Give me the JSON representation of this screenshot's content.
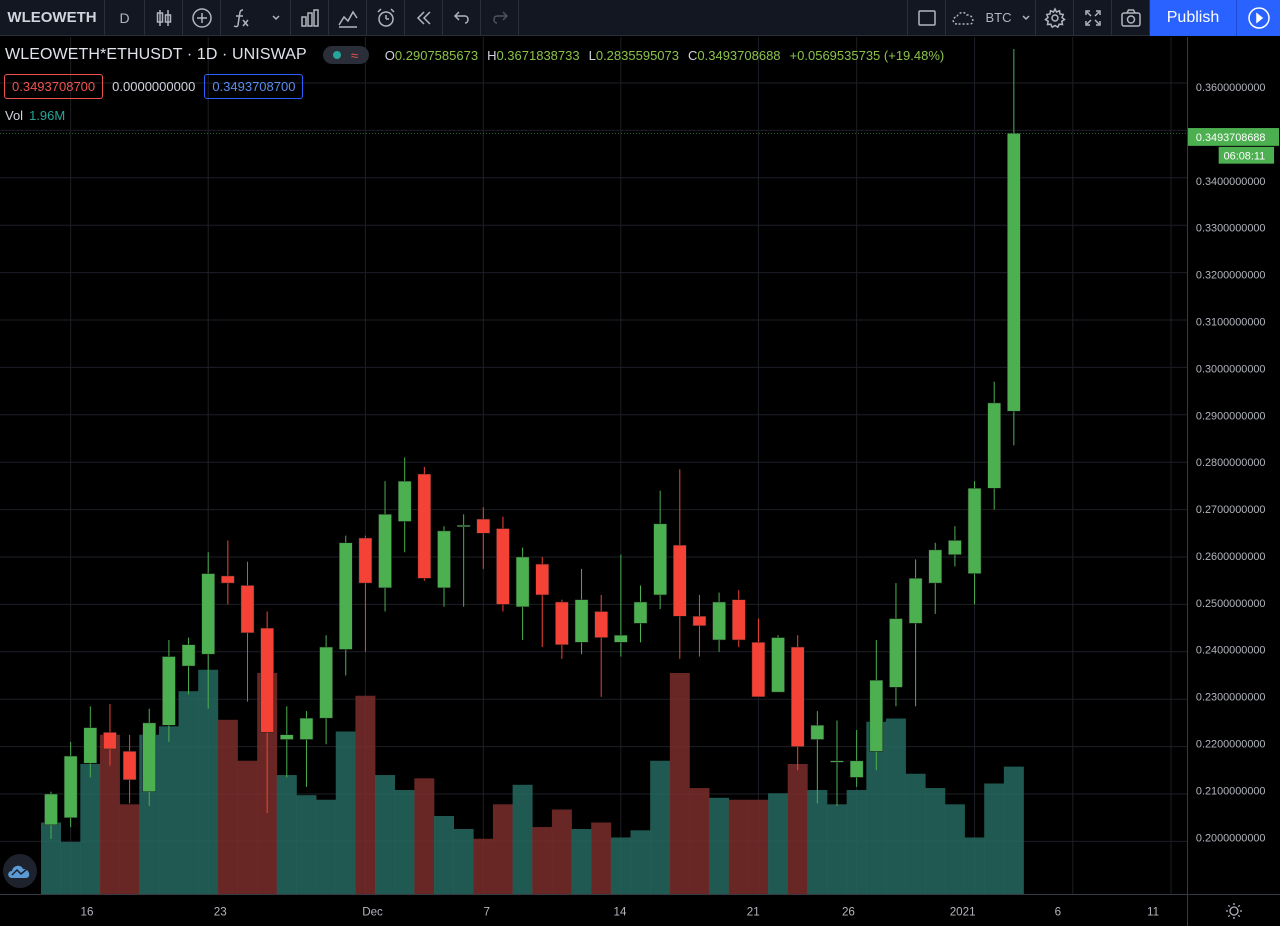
{
  "toolbar": {
    "symbol": "WLEOWETH",
    "interval": "D",
    "compare_symbol": "BTC",
    "publish_label": "Publish"
  },
  "legend": {
    "title": "WLEOWETH*ETHUSDT · 1D · UNISWAP",
    "open_label": "O",
    "open": "0.2907585673",
    "high_label": "H",
    "high": "0.3671838733",
    "low_label": "L",
    "low": "0.2835595073",
    "close_label": "C",
    "close": "0.3493708688",
    "change": "+0.0569535735 (+19.48%)"
  },
  "inputs": {
    "first": "0.3493708700",
    "second": "0.0000000000",
    "third": "0.3493708700"
  },
  "volume": {
    "label": "Vol",
    "value": "1.96M"
  },
  "price_axis": {
    "last_price": "0.3493708688",
    "countdown": "06:08:11"
  },
  "colors": {
    "up": "#4caf50",
    "down": "#f44336",
    "vol_up": "#26695f",
    "vol_down": "#7a2e2c",
    "accent": "#2962ff"
  },
  "chart_data": {
    "type": "candlestick",
    "ylim": [
      0.19,
      0.37
    ],
    "y_ticks": [
      "0.3600000000",
      "0.3500000000",
      "0.3400000000",
      "0.3300000000",
      "0.3200000000",
      "0.3100000000",
      "0.3000000000",
      "0.2900000000",
      "0.2800000000",
      "0.2700000000",
      "0.2600000000",
      "0.2500000000",
      "0.2400000000",
      "0.2300000000",
      "0.2200000000",
      "0.2100000000",
      "0.2000000000"
    ],
    "x_ticks": [
      {
        "label": "16",
        "day": 1
      },
      {
        "label": "23",
        "day": 8
      },
      {
        "label": "Dec",
        "day": 16
      },
      {
        "label": "7",
        "day": 22
      },
      {
        "label": "14",
        "day": 29
      },
      {
        "label": "21",
        "day": 36
      },
      {
        "label": "26",
        "day": 41
      },
      {
        "label": "2021",
        "day": 47
      },
      {
        "label": "6",
        "day": 52
      },
      {
        "label": "11",
        "day": 57
      }
    ],
    "candles": [
      {
        "o": 0.2035,
        "h": 0.2105,
        "l": 0.2005,
        "c": 0.21,
        "v": 1.1
      },
      {
        "o": 0.205,
        "h": 0.221,
        "l": 0.203,
        "c": 0.218,
        "v": 0.8
      },
      {
        "o": 0.2165,
        "h": 0.2285,
        "l": 0.2135,
        "c": 0.224,
        "v": 2.0
      },
      {
        "o": 0.223,
        "h": 0.229,
        "l": 0.216,
        "c": 0.2195,
        "v": 2.45
      },
      {
        "o": 0.219,
        "h": 0.2225,
        "l": 0.208,
        "c": 0.213,
        "v": 1.38
      },
      {
        "o": 0.2105,
        "h": 0.228,
        "l": 0.2075,
        "c": 0.225,
        "v": 2.45
      },
      {
        "o": 0.2245,
        "h": 0.2425,
        "l": 0.221,
        "c": 0.239,
        "v": 2.58
      },
      {
        "o": 0.237,
        "h": 0.243,
        "l": 0.231,
        "c": 0.2415,
        "v": 3.12
      },
      {
        "o": 0.2395,
        "h": 0.261,
        "l": 0.228,
        "c": 0.2565,
        "v": 3.45
      },
      {
        "o": 0.256,
        "h": 0.2635,
        "l": 0.25,
        "c": 0.2545,
        "v": 2.68
      },
      {
        "o": 0.254,
        "h": 0.259,
        "l": 0.2295,
        "c": 0.244,
        "v": 2.05
      },
      {
        "o": 0.245,
        "h": 0.2485,
        "l": 0.206,
        "c": 0.223,
        "v": 3.4
      },
      {
        "o": 0.2215,
        "h": 0.2285,
        "l": 0.2135,
        "c": 0.2225,
        "v": 1.83
      },
      {
        "o": 0.2215,
        "h": 0.2275,
        "l": 0.2115,
        "c": 0.226,
        "v": 1.52
      },
      {
        "o": 0.226,
        "h": 0.2435,
        "l": 0.2205,
        "c": 0.241,
        "v": 1.45
      },
      {
        "o": 0.2405,
        "h": 0.2645,
        "l": 0.235,
        "c": 0.263,
        "v": 2.5
      },
      {
        "o": 0.264,
        "h": 0.2645,
        "l": 0.24,
        "c": 0.2545,
        "v": 3.05
      },
      {
        "o": 0.2535,
        "h": 0.276,
        "l": 0.2485,
        "c": 0.269,
        "v": 1.83
      },
      {
        "o": 0.2675,
        "h": 0.281,
        "l": 0.261,
        "c": 0.276,
        "v": 1.6
      },
      {
        "o": 0.2775,
        "h": 0.279,
        "l": 0.255,
        "c": 0.2555,
        "v": 1.78
      },
      {
        "o": 0.2535,
        "h": 0.2665,
        "l": 0.2495,
        "c": 0.2655,
        "v": 1.2
      },
      {
        "o": 0.2665,
        "h": 0.269,
        "l": 0.2495,
        "c": 0.2667,
        "v": 1.0
      },
      {
        "o": 0.268,
        "h": 0.2705,
        "l": 0.2575,
        "c": 0.265,
        "v": 0.85
      },
      {
        "o": 0.266,
        "h": 0.2685,
        "l": 0.2485,
        "c": 0.25,
        "v": 1.38
      },
      {
        "o": 0.2495,
        "h": 0.262,
        "l": 0.2425,
        "c": 0.26,
        "v": 1.68
      },
      {
        "o": 0.2585,
        "h": 0.26,
        "l": 0.241,
        "c": 0.252,
        "v": 1.03
      },
      {
        "o": 0.2505,
        "h": 0.251,
        "l": 0.2385,
        "c": 0.2415,
        "v": 1.3
      },
      {
        "o": 0.242,
        "h": 0.2575,
        "l": 0.2395,
        "c": 0.251,
        "v": 1.0
      },
      {
        "o": 0.2485,
        "h": 0.252,
        "l": 0.2305,
        "c": 0.243,
        "v": 1.1
      },
      {
        "o": 0.242,
        "h": 0.2605,
        "l": 0.239,
        "c": 0.2435,
        "v": 0.87
      },
      {
        "o": 0.246,
        "h": 0.254,
        "l": 0.242,
        "c": 0.2505,
        "v": 0.98
      },
      {
        "o": 0.252,
        "h": 0.274,
        "l": 0.249,
        "c": 0.267,
        "v": 2.05
      },
      {
        "o": 0.2625,
        "h": 0.2785,
        "l": 0.2385,
        "c": 0.2475,
        "v": 3.4
      },
      {
        "o": 0.2475,
        "h": 0.252,
        "l": 0.239,
        "c": 0.2455,
        "v": 1.63
      },
      {
        "o": 0.2425,
        "h": 0.2525,
        "l": 0.24,
        "c": 0.2505,
        "v": 1.48
      },
      {
        "o": 0.251,
        "h": 0.253,
        "l": 0.241,
        "c": 0.2425,
        "v": 1.45
      },
      {
        "o": 0.242,
        "h": 0.247,
        "l": 0.2305,
        "c": 0.2305,
        "v": 1.45
      },
      {
        "o": 0.2315,
        "h": 0.2435,
        "l": 0.2315,
        "c": 0.243,
        "v": 1.55
      },
      {
        "o": 0.241,
        "h": 0.2435,
        "l": 0.215,
        "c": 0.22,
        "v": 2.0
      },
      {
        "o": 0.2215,
        "h": 0.2275,
        "l": 0.208,
        "c": 0.2245,
        "v": 1.6
      },
      {
        "o": 0.217,
        "h": 0.2255,
        "l": 0.2075,
        "c": 0.217,
        "v": 1.38
      },
      {
        "o": 0.2135,
        "h": 0.2235,
        "l": 0.2115,
        "c": 0.217,
        "v": 1.6
      },
      {
        "o": 0.219,
        "h": 0.2425,
        "l": 0.215,
        "c": 0.234,
        "v": 2.65
      },
      {
        "o": 0.2325,
        "h": 0.2545,
        "l": 0.2285,
        "c": 0.247,
        "v": 2.7
      },
      {
        "o": 0.246,
        "h": 0.2595,
        "l": 0.2285,
        "c": 0.2555,
        "v": 1.85
      },
      {
        "o": 0.2545,
        "h": 0.263,
        "l": 0.248,
        "c": 0.2615,
        "v": 1.63
      },
      {
        "o": 0.2605,
        "h": 0.2665,
        "l": 0.258,
        "c": 0.2635,
        "v": 1.38
      },
      {
        "o": 0.2565,
        "h": 0.276,
        "l": 0.25,
        "c": 0.2745,
        "v": 0.87
      },
      {
        "o": 0.2745,
        "h": 0.297,
        "l": 0.27,
        "c": 0.2925,
        "v": 1.7
      },
      {
        "o": 0.2907585673,
        "h": 0.3671838733,
        "l": 0.2835595073,
        "c": 0.3493708688,
        "v": 1.96
      }
    ]
  }
}
